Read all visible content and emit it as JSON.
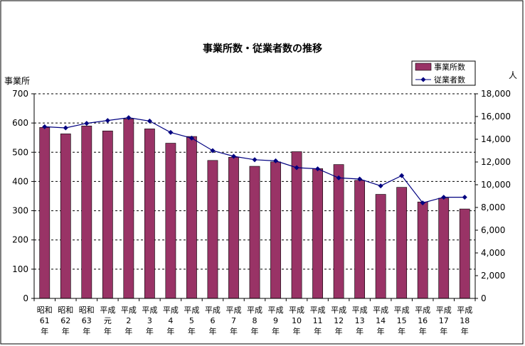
{
  "chart_data": {
    "type": "bar",
    "title": "事業所数・従業者数の推移",
    "left_axis_label": "事業所",
    "right_axis_label": "人",
    "left_ylim": [
      0,
      700
    ],
    "left_ticks": [
      "0",
      "100",
      "200",
      "300",
      "400",
      "500",
      "600",
      "700"
    ],
    "right_ylim": [
      0,
      18000
    ],
    "right_ticks": [
      "0",
      "2,000",
      "4,000",
      "6,000",
      "8,000",
      "10,000",
      "12,000",
      "14,000",
      "16,000",
      "18,000"
    ],
    "grid": "dashed horizontal",
    "legend_position": "top-right",
    "categories": [
      [
        "昭和",
        "61",
        "年"
      ],
      [
        "昭和",
        "62",
        "年"
      ],
      [
        "昭和",
        "63",
        "年"
      ],
      [
        "平成",
        "元",
        "年"
      ],
      [
        "平成",
        "2",
        "年"
      ],
      [
        "平成",
        "3",
        "年"
      ],
      [
        "平成",
        "4",
        "年"
      ],
      [
        "平成",
        "5",
        "年"
      ],
      [
        "平成",
        "6",
        "年"
      ],
      [
        "平成",
        "7",
        "年"
      ],
      [
        "平成",
        "8",
        "年"
      ],
      [
        "平成",
        "9",
        "年"
      ],
      [
        "平成",
        "10",
        "年"
      ],
      [
        "平成",
        "11",
        "年"
      ],
      [
        "平成",
        "12",
        "年"
      ],
      [
        "平成",
        "13",
        "年"
      ],
      [
        "平成",
        "14",
        "年"
      ],
      [
        "平成",
        "15",
        "年"
      ],
      [
        "平成",
        "16",
        "年"
      ],
      [
        "平成",
        "17",
        "年"
      ],
      [
        "平成",
        "18",
        "年"
      ]
    ],
    "series": [
      {
        "name": "事業所数",
        "type": "bar",
        "axis": "left",
        "color": "#993366",
        "values": [
          585,
          563,
          590,
          573,
          614,
          580,
          531,
          554,
          472,
          483,
          452,
          467,
          502,
          444,
          458,
          404,
          356,
          380,
          330,
          343,
          306
        ]
      },
      {
        "name": "従業者数",
        "type": "line",
        "axis": "right",
        "color": "#000080",
        "values": [
          15100,
          15000,
          15400,
          15650,
          15900,
          15600,
          14600,
          14100,
          13000,
          12500,
          12200,
          12100,
          11500,
          11400,
          10600,
          10500,
          9900,
          10800,
          8400,
          8900,
          8900
        ]
      }
    ]
  }
}
